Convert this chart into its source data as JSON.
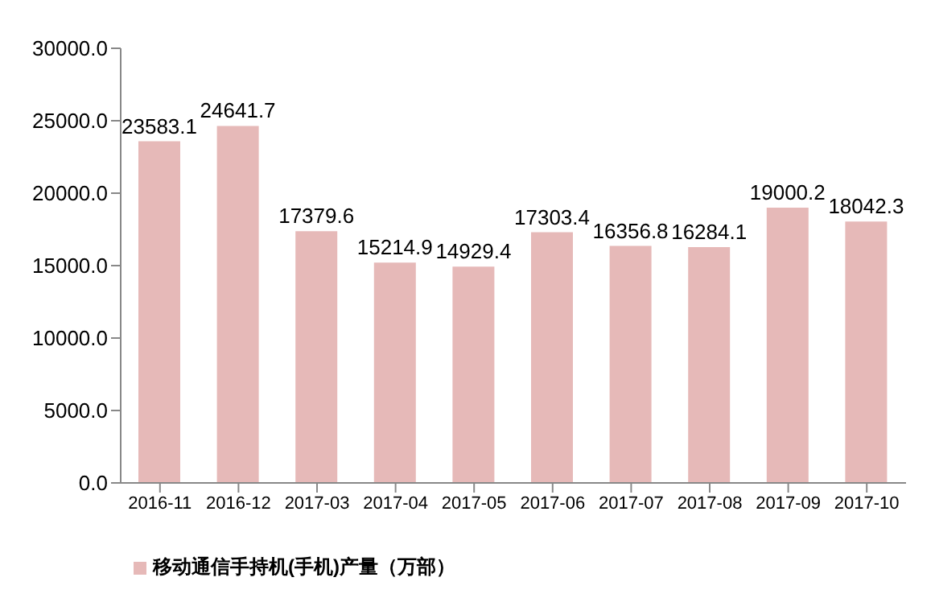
{
  "chart_data": {
    "type": "bar",
    "categories": [
      "2016-11",
      "2016-12",
      "2017-03",
      "2017-04",
      "2017-05",
      "2017-06",
      "2017-07",
      "2017-08",
      "2017-09",
      "2017-10"
    ],
    "series": [
      {
        "name": "移动通信手持机(手机)产量（万部）",
        "color": "#e6b9b8",
        "values": [
          23583.1,
          24641.7,
          17379.6,
          15214.9,
          14929.4,
          17303.4,
          16356.8,
          16284.1,
          19000.2,
          18042.3
        ]
      }
    ],
    "ylim": [
      0,
      30000
    ],
    "yticks": [
      {
        "value": 0,
        "label": "0.0"
      },
      {
        "value": 5000,
        "label": "5000.0"
      },
      {
        "value": 10000,
        "label": "10000.0"
      },
      {
        "value": 15000,
        "label": "15000.0"
      },
      {
        "value": 20000,
        "label": "20000.0"
      },
      {
        "value": 25000,
        "label": "25000.0"
      },
      {
        "value": 30000,
        "label": "30000.0"
      }
    ],
    "data_labels": true,
    "grid": false,
    "legend": "bottom left"
  }
}
